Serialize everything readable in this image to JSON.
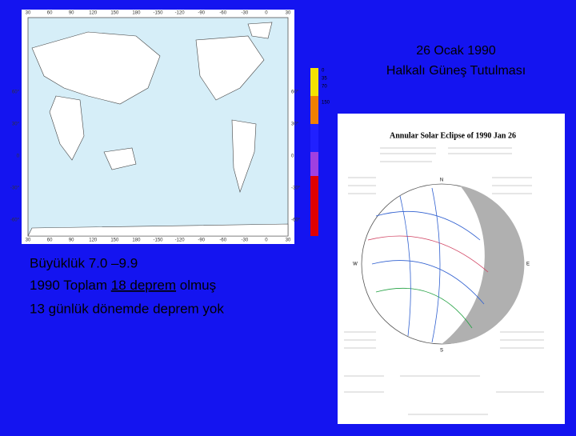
{
  "header": {
    "title_lines": [
      "26 Ocak 1990",
      "Halkalı Güneş Tutulması"
    ]
  },
  "body": {
    "line1": "Büyüklük 7.0 –9.9",
    "line2": {
      "before": "1990 Toplam ",
      "underlined": "18 deprem",
      "after": " olmuş"
    },
    "line3": "13 günlük dönemde deprem yok"
  },
  "map": {
    "top_ticks": [
      "30",
      "60",
      "90",
      "120",
      "150",
      "180",
      "-150",
      "-120",
      "-90",
      "-60",
      "-30",
      "0",
      "30"
    ],
    "left_ticks": [
      "60°",
      "30°",
      "0",
      "-30°",
      "-60°"
    ],
    "right_ticks": [
      "60°",
      "30°",
      "0",
      "-30°",
      "-60°"
    ],
    "colorbar_labels": [
      "0",
      "35",
      "70",
      "150"
    ]
  },
  "figure": {
    "title": "Annular Solar Eclipse of 1990 Jan 26",
    "compass": [
      "N",
      "S",
      "E",
      "W"
    ]
  }
}
